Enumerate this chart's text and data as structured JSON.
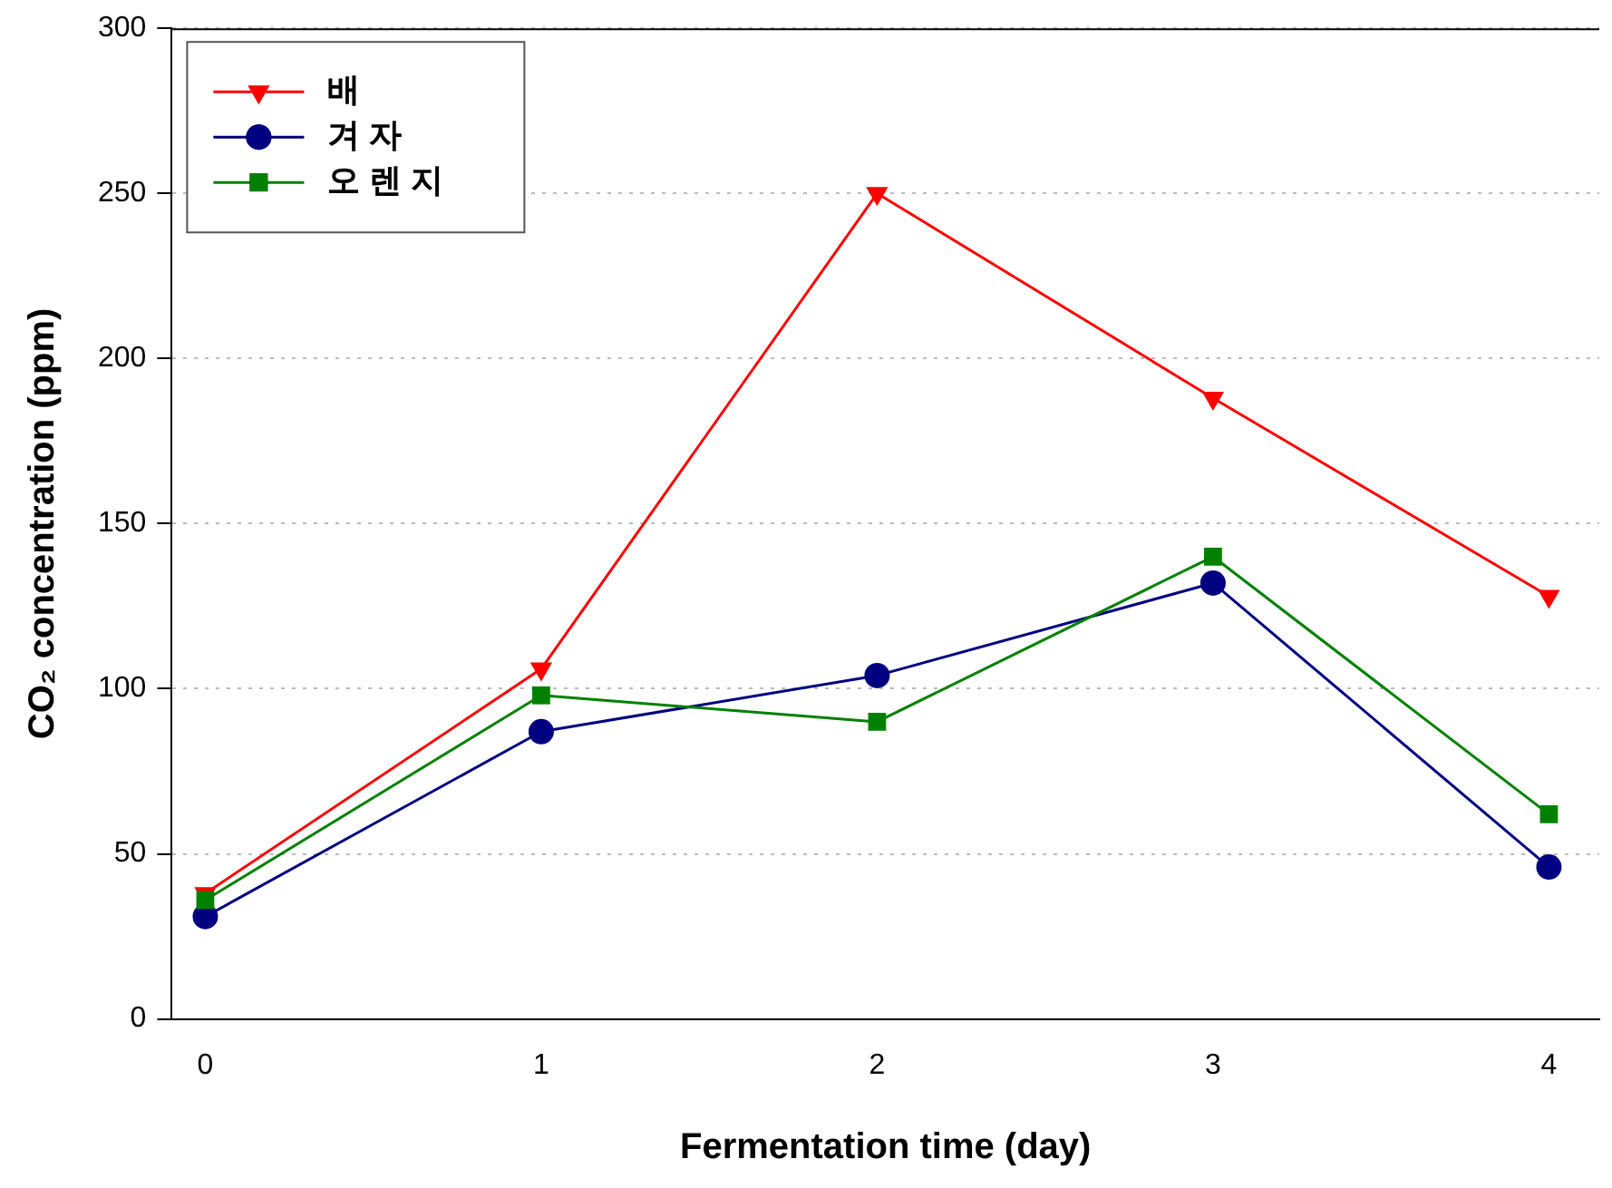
{
  "chart_data": {
    "type": "line",
    "xlabel": "Fermentation time (day)",
    "ylabel": "CO₂ concentration (ppm)",
    "x": [
      0,
      1,
      2,
      3,
      4
    ],
    "xlim": [
      -0.1,
      4.15
    ],
    "xticks": [
      0,
      1,
      2,
      3,
      4
    ],
    "ylim": [
      0,
      300
    ],
    "yticks": [
      0,
      50,
      100,
      150,
      200,
      250,
      300
    ],
    "grid": "y",
    "legend": "top left",
    "series": [
      {
        "name": "배",
        "color": "#ff0000",
        "marker": "triangle",
        "values": [
          38,
          106,
          250,
          188,
          128
        ]
      },
      {
        "name": "겨 자",
        "color": "#000080",
        "marker": "circle",
        "values": [
          31,
          87,
          104,
          132,
          46
        ]
      },
      {
        "name": "오 렌 지",
        "color": "#008000",
        "marker": "square",
        "values": [
          36,
          98,
          90,
          140,
          62
        ]
      }
    ]
  }
}
